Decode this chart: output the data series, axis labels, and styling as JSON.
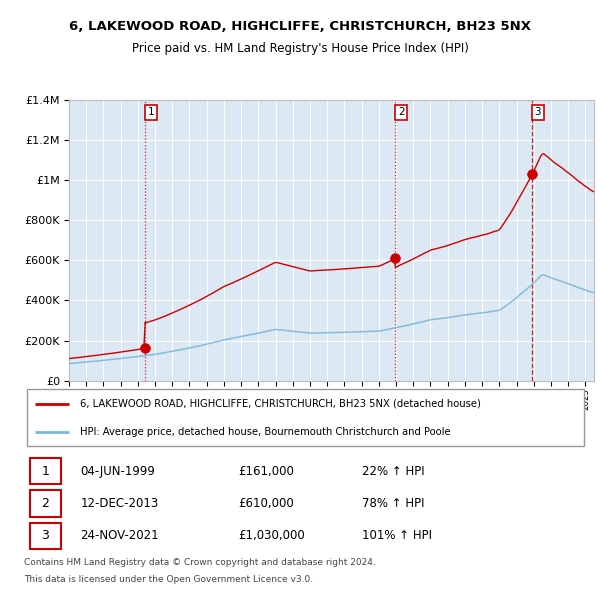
{
  "title": "6, LAKEWOOD ROAD, HIGHCLIFFE, CHRISTCHURCH, BH23 5NX",
  "subtitle": "Price paid vs. HM Land Registry's House Price Index (HPI)",
  "legend_red": "6, LAKEWOOD ROAD, HIGHCLIFFE, CHRISTCHURCH, BH23 5NX (detached house)",
  "legend_blue": "HPI: Average price, detached house, Bournemouth Christchurch and Poole",
  "footer1": "Contains HM Land Registry data © Crown copyright and database right 2024.",
  "footer2": "This data is licensed under the Open Government Licence v3.0.",
  "sales": [
    {
      "num": 1,
      "date": "04-JUN-1999",
      "price": "£161,000",
      "change": "22% ↑ HPI"
    },
    {
      "num": 2,
      "date": "12-DEC-2013",
      "price": "£610,000",
      "change": "78% ↑ HPI"
    },
    {
      "num": 3,
      "date": "24-NOV-2021",
      "price": "£1,030,000",
      "change": "101% ↑ HPI"
    }
  ],
  "sale_dates_decimal": [
    1999.43,
    2013.95,
    2021.9
  ],
  "sale_prices": [
    161000,
    610000,
    1030000
  ],
  "ylim": [
    0,
    1400000
  ],
  "xlim_start": 1995.0,
  "xlim_end": 2025.5,
  "bg_color": "#dce9f5",
  "red_color": "#cc0000",
  "blue_color": "#7ab8d9",
  "grid_color": "#ffffff"
}
